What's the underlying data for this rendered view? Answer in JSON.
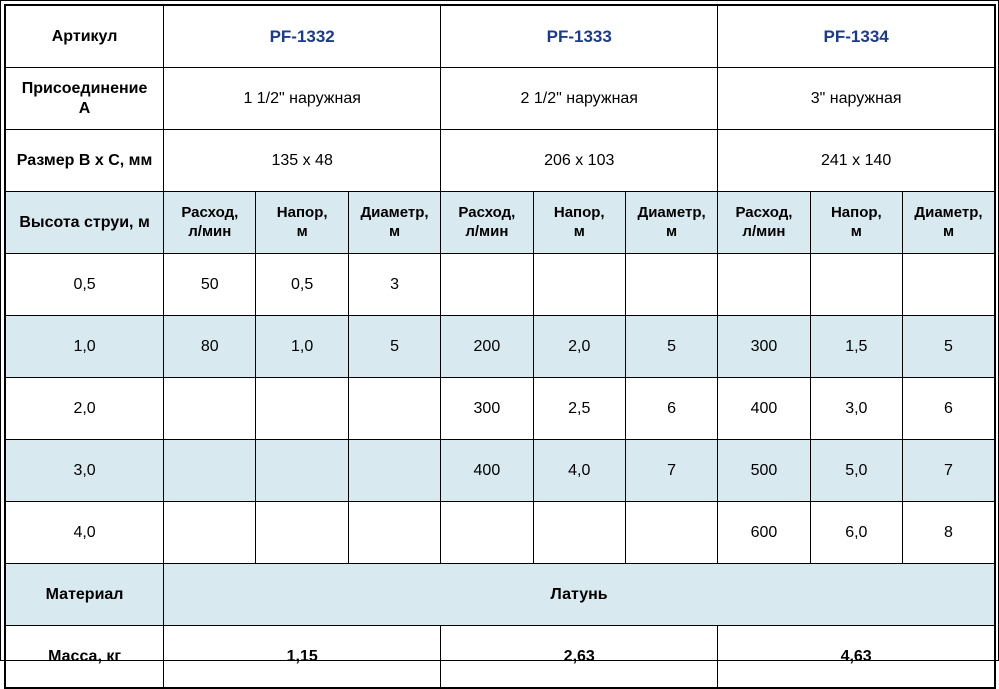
{
  "labels": {
    "article": "Артикул",
    "connection": "Присоединение\nА",
    "size": "Размер B x C, мм",
    "jet_height": "Высота струи, м",
    "flow": "Расход,\nл/мин",
    "head": "Напор,\nм",
    "diameter": "Диаметр,\nм",
    "material": "Материал",
    "mass": "Масса, кг"
  },
  "products": [
    {
      "article": "PF-1332",
      "connection": "1 1/2\" наружная",
      "size": "135 x 48",
      "mass": "1,15"
    },
    {
      "article": "PF-1333",
      "connection": "2 1/2\" наружная",
      "size": "206 x 103",
      "mass": "2,63"
    },
    {
      "article": "PF-1334",
      "connection": "3\" наружная",
      "size": "241 x 140",
      "mass": "4,63"
    }
  ],
  "material_value": "Латунь",
  "jet_rows": [
    {
      "height": "0,5",
      "cells": [
        "50",
        "0,5",
        "3",
        "",
        "",
        "",
        "",
        "",
        ""
      ]
    },
    {
      "height": "1,0",
      "cells": [
        "80",
        "1,0",
        "5",
        "200",
        "2,0",
        "5",
        "300",
        "1,5",
        "5"
      ]
    },
    {
      "height": "2,0",
      "cells": [
        "",
        "",
        "",
        "300",
        "2,5",
        "6",
        "400",
        "3,0",
        "6"
      ]
    },
    {
      "height": "3,0",
      "cells": [
        "",
        "",
        "",
        "400",
        "4,0",
        "7",
        "500",
        "5,0",
        "7"
      ]
    },
    {
      "height": "4,0",
      "cells": [
        "",
        "",
        "",
        "",
        "",
        "",
        "600",
        "6,0",
        "8"
      ]
    }
  ],
  "colors": {
    "article_blue": "#1c3a8e",
    "row_shade": "#d8e9ef",
    "border": "#000000"
  }
}
